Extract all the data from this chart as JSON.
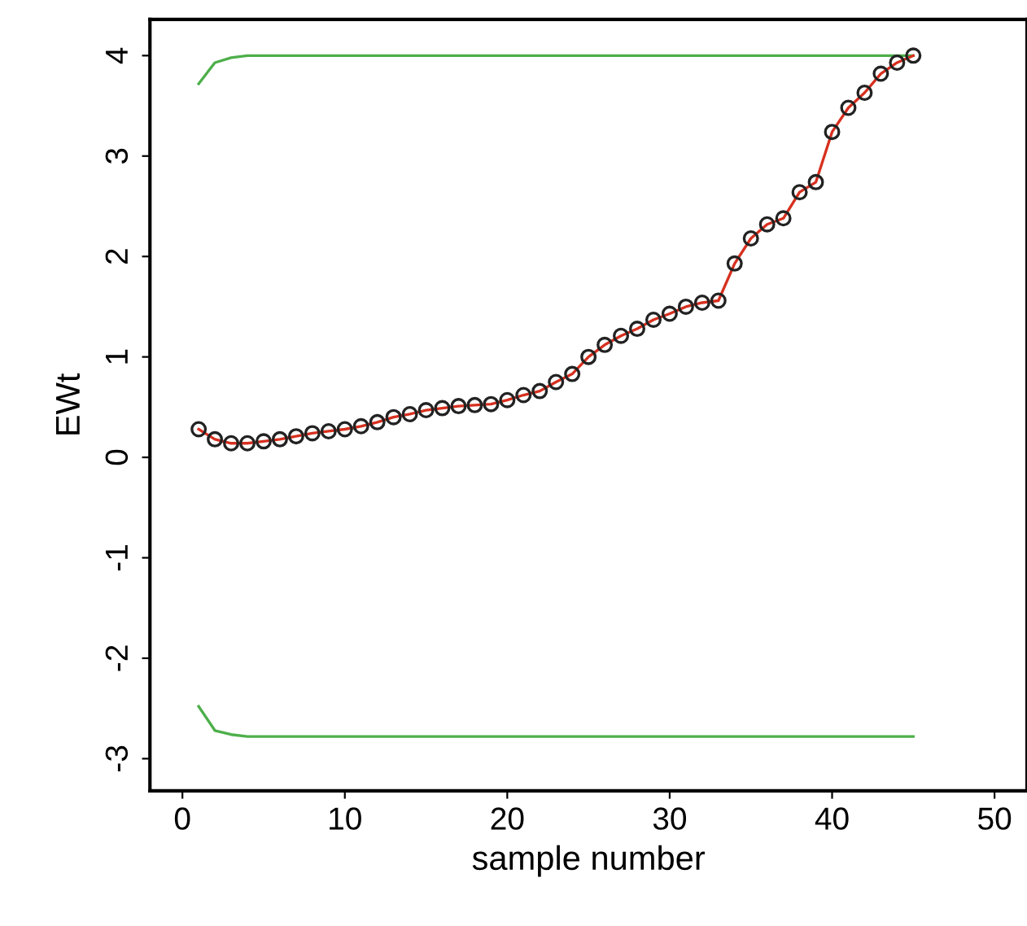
{
  "chart_data": {
    "type": "line",
    "xlabel": "sample number",
    "ylabel": "EWt",
    "xlim": [
      -2,
      52
    ],
    "xticks": [
      0,
      10,
      20,
      30,
      40,
      50
    ],
    "ylim": [
      -3.32,
      4.36
    ],
    "yticks": [
      -3,
      -2,
      -1,
      0,
      1,
      2,
      3,
      4
    ],
    "grid": false,
    "legend": false,
    "series": [
      {
        "color": "#4daf4a",
        "x": [
          1,
          2,
          3,
          4,
          45
        ],
        "values": [
          3.72,
          3.93,
          3.98,
          4.0,
          4.0
        ],
        "marker": "none"
      },
      {
        "color": "#4daf4a",
        "x": [
          1,
          2,
          3,
          4,
          45
        ],
        "values": [
          -2.48,
          -2.72,
          -2.76,
          -2.78,
          -2.78
        ],
        "marker": "none"
      },
      {
        "color": "#d7301f",
        "x": [
          1,
          2,
          3,
          4,
          5,
          6,
          7,
          8,
          9,
          10,
          11,
          12,
          13,
          14,
          15,
          16,
          17,
          18,
          19,
          20,
          21,
          22,
          23,
          24,
          25,
          26,
          27,
          28,
          29,
          30,
          31,
          32,
          33,
          34,
          35,
          36,
          37,
          38,
          39,
          40,
          41,
          42,
          43,
          44,
          45
        ],
        "values": [
          0.28,
          0.18,
          0.14,
          0.14,
          0.16,
          0.18,
          0.21,
          0.24,
          0.26,
          0.28,
          0.31,
          0.35,
          0.4,
          0.43,
          0.47,
          0.49,
          0.51,
          0.52,
          0.53,
          0.57,
          0.62,
          0.66,
          0.75,
          0.83,
          1.0,
          1.12,
          1.21,
          1.28,
          1.37,
          1.43,
          1.5,
          1.54,
          1.56,
          1.93,
          2.18,
          2.32,
          2.38,
          2.64,
          2.74,
          3.24,
          3.48,
          3.63,
          3.82,
          3.93,
          4.0
        ],
        "marker": "circle"
      }
    ]
  }
}
